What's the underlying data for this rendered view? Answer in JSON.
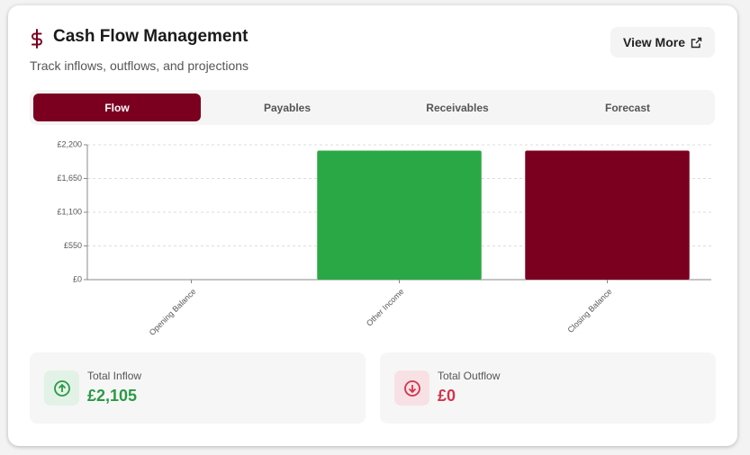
{
  "header": {
    "title": "Cash Flow Management",
    "subtitle": "Track inflows, outflows, and projections",
    "button": "View More"
  },
  "tabs": [
    "Flow",
    "Payables",
    "Receivables",
    "Forecast"
  ],
  "active_tab": 0,
  "chart_data": {
    "type": "bar",
    "categories": [
      "Opening Balance",
      "Other Income",
      "Closing Balance"
    ],
    "values": [
      0,
      2105,
      2105
    ],
    "colors": [
      "#2aa846",
      "#2aa846",
      "#7b0020"
    ],
    "ylim": [
      0,
      2200
    ],
    "yticks": [
      {
        "value": 0,
        "label": "£0"
      },
      {
        "value": 550,
        "label": "£550"
      },
      {
        "value": 1100,
        "label": "£1,100"
      },
      {
        "value": 1650,
        "label": "£1,650"
      },
      {
        "value": 2200,
        "label": "£2,200"
      }
    ],
    "grid": true
  },
  "stats": [
    {
      "label": "Total Inflow",
      "value": "£2,105"
    },
    {
      "label": "Total Outflow",
      "value": "£0"
    }
  ]
}
